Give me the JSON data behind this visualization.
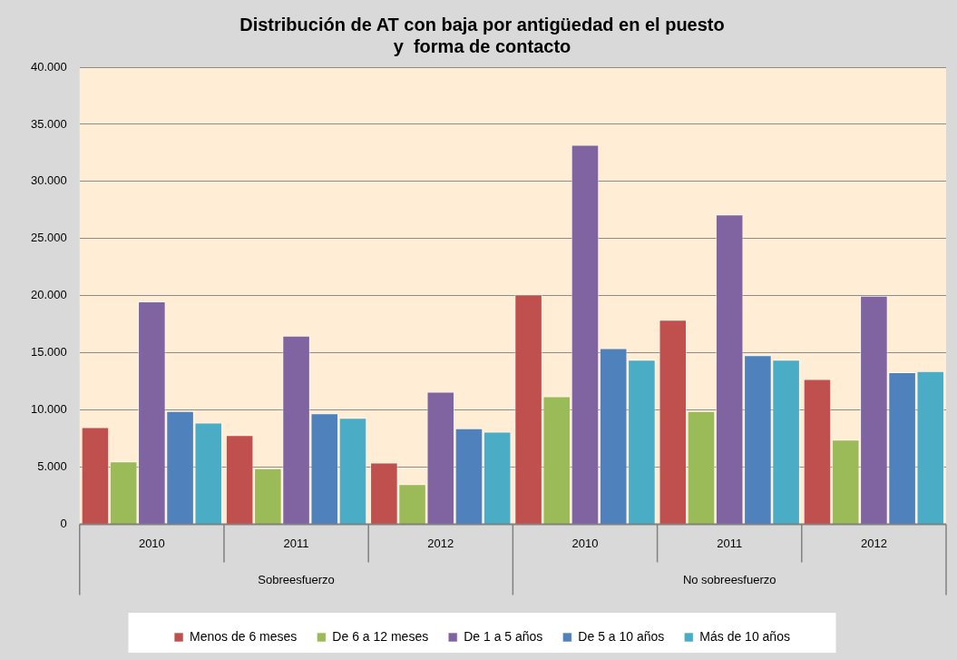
{
  "chart_data": {
    "type": "bar",
    "title": "Distribución de AT con baja por antigüedad en el puesto\ny  forma de contacto",
    "categories": [
      "2010",
      "2011",
      "2012",
      "2010",
      "2011",
      "2012"
    ],
    "annotations": [
      "Sobreesfuerzo",
      "No sobreesfuerzo"
    ],
    "series": [
      {
        "name": "Menos de 6 meses",
        "color": "#c0504d",
        "values": [
          8500,
          7800,
          5400,
          20100,
          17900,
          12700
        ]
      },
      {
        "name": "De 6 a 12 meses",
        "color": "#9bbb59",
        "values": [
          5500,
          4900,
          3500,
          11200,
          9900,
          7400
        ]
      },
      {
        "name": "De 1 a 5 años",
        "color": "#8064a2",
        "values": [
          19500,
          16500,
          11600,
          33200,
          27100,
          20000
        ]
      },
      {
        "name": "De 5 a 10 años",
        "color": "#4f81bd",
        "values": [
          9900,
          9700,
          8400,
          15400,
          14800,
          13300
        ]
      },
      {
        "name": "Más de 10 años",
        "color": "#4bacc6",
        "values": [
          8900,
          9300,
          8100,
          14400,
          14400,
          13400
        ]
      }
    ],
    "ylim": [
      0,
      40000
    ],
    "yticks": [
      0,
      {
        "value": 5000,
        "label": "5.000"
      },
      {
        "value": 10000,
        "label": "10.000"
      },
      {
        "value": 15000,
        "label": "15.000"
      },
      {
        "value": 20000,
        "label": "20.000"
      },
      {
        "value": 25000,
        "label": "25.000"
      },
      {
        "value": 30000,
        "label": "30.000"
      },
      {
        "value": 35000,
        "label": "35.000"
      },
      {
        "value": 40000,
        "label": "40.000"
      }
    ],
    "grid": "y",
    "legend": "bottom"
  }
}
